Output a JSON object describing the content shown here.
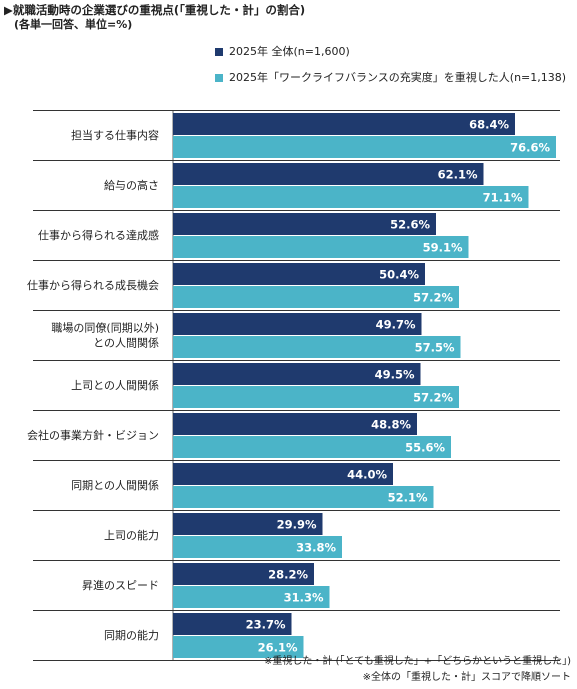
{
  "title": "▶就職活動時の企業選びの重視点(「重視した・計」の割合)",
  "subtitle": "(各単一回答、単位=%)",
  "colors": {
    "series1": "#1f3a6e",
    "series2": "#4bb4c8",
    "row_border": "#333333"
  },
  "chart_data": {
    "type": "bar",
    "orientation": "horizontal",
    "categories": [
      "担当する仕事内容",
      "給与の高さ",
      "仕事から得られる達成感",
      "仕事から得られる成長機会",
      "職場の同僚(同期以外)\nとの人間関係",
      "上司との人間関係",
      "会社の事業方針・ビジョン",
      "同期との人間関係",
      "上司の能力",
      "昇進のスピード",
      "同期の能力"
    ],
    "series": [
      {
        "name": "2025年 全体(n=1,600)",
        "values": [
          68.4,
          62.1,
          52.6,
          50.4,
          49.7,
          49.5,
          48.8,
          44.0,
          29.9,
          28.2,
          23.7
        ]
      },
      {
        "name": "2025年「ワークライフバランスの充実度」を重視した人(n=1,138)",
        "values": [
          76.6,
          71.1,
          59.1,
          57.2,
          57.5,
          57.2,
          55.6,
          52.1,
          33.8,
          31.3,
          26.1
        ]
      }
    ],
    "value_suffix": "%",
    "xlim": [
      0,
      100
    ],
    "grid": false,
    "legend_position": "top"
  },
  "notes": [
    "※重視した・計 (「とても重視した」+「どちらかというと重視した」)",
    "※全体の「重視した・計」スコアで降順ソート"
  ]
}
